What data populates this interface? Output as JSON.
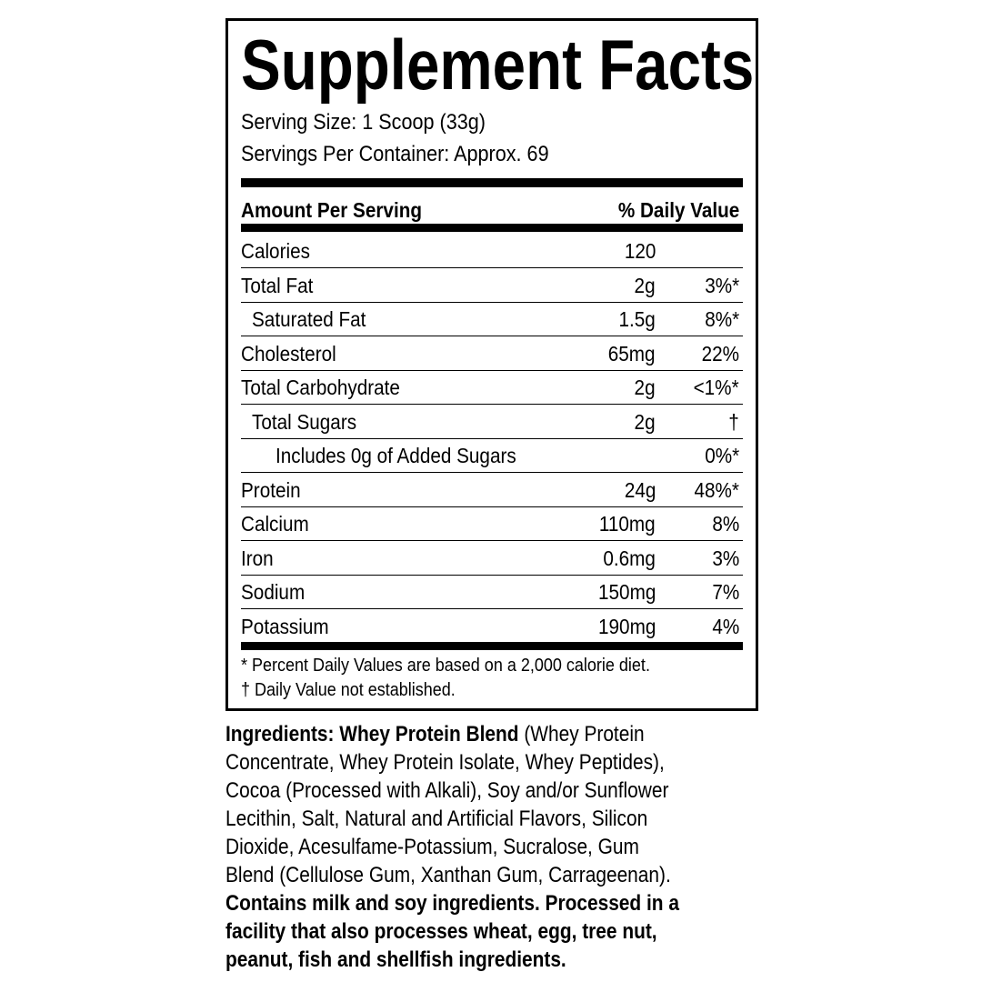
{
  "title": "Supplement Facts",
  "serving_size": "Serving Size: 1 Scoop (33g)",
  "servings_per_container": "Servings Per Container: Approx. 69",
  "header": {
    "amount": "Amount Per Serving",
    "dv": "% Daily Value"
  },
  "rows": [
    {
      "label": "Calories",
      "amount": "120",
      "dv": "",
      "indent": 0
    },
    {
      "label": "Total Fat",
      "amount": "2g",
      "dv": "3%*",
      "indent": 0
    },
    {
      "label": "Saturated Fat",
      "amount": "1.5g",
      "dv": "8%*",
      "indent": 1
    },
    {
      "label": "Cholesterol",
      "amount": "65mg",
      "dv": "22%",
      "indent": 0
    },
    {
      "label": "Total Carbohydrate",
      "amount": "2g",
      "dv": "<1%*",
      "indent": 0
    },
    {
      "label": "Total Sugars",
      "amount": "2g",
      "dv": "†",
      "indent": 1
    },
    {
      "label": "Includes 0g of Added Sugars",
      "amount": "",
      "dv": "0%*",
      "indent": 2
    },
    {
      "label": "Protein",
      "amount": "24g",
      "dv": "48%*",
      "indent": 0
    },
    {
      "label": "Calcium",
      "amount": "110mg",
      "dv": "8%",
      "indent": 0
    },
    {
      "label": "Iron",
      "amount": "0.6mg",
      "dv": "3%",
      "indent": 0
    },
    {
      "label": "Sodium",
      "amount": "150mg",
      "dv": "7%",
      "indent": 0
    },
    {
      "label": "Potassium",
      "amount": "190mg",
      "dv": "4%",
      "indent": 0
    }
  ],
  "footnotes": [
    "* Percent Daily Values are based on a 2,000 calorie diet.",
    "† Daily Value not established."
  ],
  "ingredients": [
    [
      {
        "text": "Ingredients: Whey Protein Blend",
        "bold": true
      },
      {
        "text": " (Whey Protein",
        "bold": false
      }
    ],
    [
      {
        "text": "Concentrate, Whey Protein Isolate, Whey Peptides),",
        "bold": false
      }
    ],
    [
      {
        "text": "Cocoa (Processed with Alkali), Soy and/or Sunflower",
        "bold": false
      }
    ],
    [
      {
        "text": "Lecithin, Salt, Natural and Artificial Flavors, Silicon",
        "bold": false
      }
    ],
    [
      {
        "text": "Dioxide, Acesulfame-Potassium, Sucralose, Gum",
        "bold": false
      }
    ],
    [
      {
        "text": "Blend (Cellulose Gum, Xanthan Gum, Carrageenan).",
        "bold": false
      }
    ],
    [
      {
        "text": "Contains milk and soy ingredients. Processed in a",
        "bold": true
      }
    ],
    [
      {
        "text": "facility that also processes wheat, egg, tree nut,",
        "bold": true
      }
    ],
    [
      {
        "text": "peanut, fish and shellfish ingredients.",
        "bold": true
      }
    ]
  ]
}
